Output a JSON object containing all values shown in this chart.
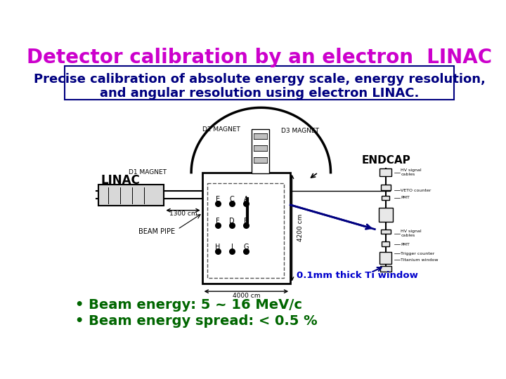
{
  "title": "Detector calibration by an electron  LINAC",
  "title_color": "#CC00CC",
  "title_fontsize": 20,
  "subtitle_line1": "Precise calibration of absolute energy scale, energy resolution,",
  "subtitle_line2": "and angular resolution using electron LINAC.",
  "subtitle_color": "#000080",
  "subtitle_fontsize": 13,
  "endcap_label": "ENDCAP",
  "endcap_color": "#000000",
  "ti_window_label": "0.1mm thick Ti window",
  "ti_window_color": "#0000CC",
  "bullet1": "• Beam energy: 5 ~ 16 MeV/c",
  "bullet2": "• Beam energy spread: < 0.5 %",
  "bullet_color": "#006600",
  "bullet_fontsize": 14,
  "bg_color": "#FFFFFF",
  "box_edge_color": "#000080"
}
